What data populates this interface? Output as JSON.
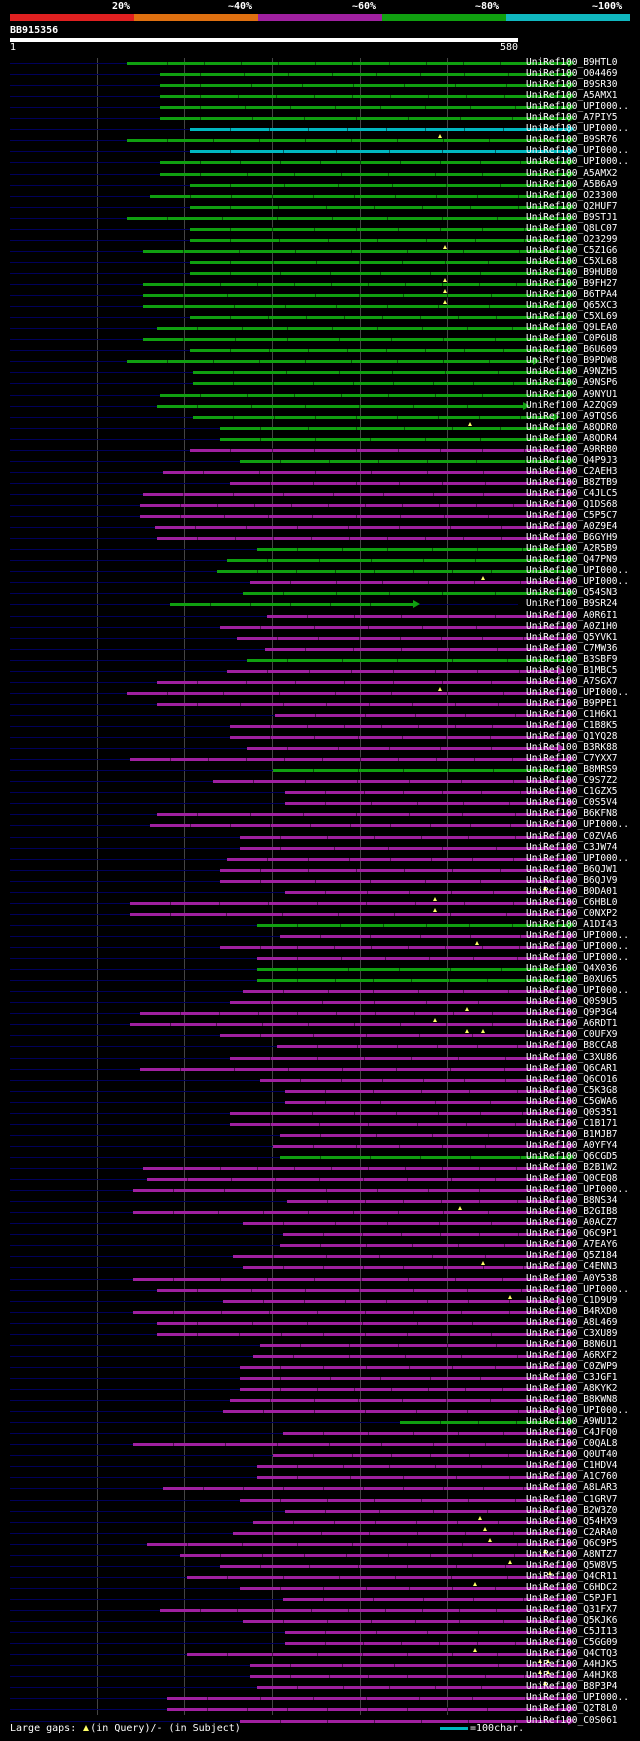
{
  "legend": {
    "labels": [
      "20%",
      "~40%",
      "~60%",
      "~80%",
      "~100%"
    ],
    "colors": [
      "#e02020",
      "#e07010",
      "#a020a0",
      "#10a010",
      "#10b8c0"
    ]
  },
  "query": {
    "name": "BB915356",
    "start": "1",
    "end": "580",
    "length": 580
  },
  "footer": {
    "gaps_label": "Large gaps:",
    "query_text": "(in Query)/",
    "subject_dash": "-",
    "subject_text": " (in Subject)",
    "scale_text": "=100char."
  },
  "hits": [
    [
      "UniRef100_B9HTL0",
      127,
      575,
      "g",
      []
    ],
    [
      "UniRef100_O04469",
      160,
      575,
      "g",
      []
    ],
    [
      "UniRef100_B9SR30",
      160,
      575,
      "g",
      []
    ],
    [
      "UniRef100_A5AMX1",
      160,
      575,
      "g",
      []
    ],
    [
      "UniRef100_UPI000..",
      160,
      575,
      "g",
      []
    ],
    [
      "UniRef100_A7PIY5",
      160,
      575,
      "g",
      []
    ],
    [
      "UniRef100_UPI000..",
      190,
      575,
      "c",
      []
    ],
    [
      "UniRef100_B9SR76",
      127,
      575,
      "g",
      [
        440
      ]
    ],
    [
      "UniRef100_UPI000..",
      190,
      575,
      "c",
      []
    ],
    [
      "UniRef100_UPI000..",
      160,
      575,
      "g",
      []
    ],
    [
      "UniRef100_A5AMX2",
      160,
      575,
      "g",
      []
    ],
    [
      "UniRef100_A5B6A9",
      190,
      575,
      "g",
      []
    ],
    [
      "UniRef100_O23300",
      150,
      575,
      "g",
      []
    ],
    [
      "UniRef100_Q2HUF7",
      190,
      575,
      "g",
      []
    ],
    [
      "UniRef100_B9STJ1",
      127,
      575,
      "g",
      []
    ],
    [
      "UniRef100_Q8LC07",
      190,
      575,
      "g",
      []
    ],
    [
      "UniRef100_O23299",
      190,
      575,
      "g",
      []
    ],
    [
      "UniRef100_C5Z1G6",
      143,
      575,
      "g",
      [
        445
      ]
    ],
    [
      "UniRef100_C5XL68",
      190,
      575,
      "g",
      []
    ],
    [
      "UniRef100_B9HUB0",
      190,
      575,
      "g",
      []
    ],
    [
      "UniRef100_B9FH27",
      143,
      575,
      "g",
      [
        445
      ]
    ],
    [
      "UniRef100_B6TPA4",
      143,
      575,
      "g",
      [
        445
      ]
    ],
    [
      "UniRef100_Q65XC3",
      143,
      575,
      "g",
      [
        445
      ]
    ],
    [
      "UniRef100_C5XL69",
      190,
      575,
      "g",
      []
    ],
    [
      "UniRef100_Q9LEA0",
      157,
      575,
      "g",
      []
    ],
    [
      "UniRef100_C0P6U8",
      143,
      575,
      "g",
      []
    ],
    [
      "UniRef100_B6U609",
      190,
      575,
      "g",
      []
    ],
    [
      "UniRef100_B9PDW8",
      127,
      540,
      "g",
      []
    ],
    [
      "UniRef100_A9NZH5",
      193,
      575,
      "g",
      []
    ],
    [
      "UniRef100_A9NSP6",
      193,
      575,
      "g",
      []
    ],
    [
      "UniRef100_A9NYU1",
      160,
      575,
      "g",
      []
    ],
    [
      "UniRef100_A2ZQG9",
      157,
      530,
      "g",
      []
    ],
    [
      "UniRef100_A9TQS6",
      193,
      560,
      "g",
      []
    ],
    [
      "UniRef100_A8QDR0",
      220,
      575,
      "g",
      [
        470
      ]
    ],
    [
      "UniRef100_A8QDR4",
      220,
      575,
      "g",
      []
    ],
    [
      "UniRef100_A9RRB0",
      190,
      575,
      "m",
      []
    ],
    [
      "UniRef100_Q4P9J3",
      240,
      575,
      "g",
      []
    ],
    [
      "UniRef100_C2AEH3",
      163,
      575,
      "m",
      []
    ],
    [
      "UniRef100_B8ZTB9",
      230,
      575,
      "m",
      []
    ],
    [
      "UniRef100_C4JLC5",
      143,
      575,
      "m",
      []
    ],
    [
      "UniRef100_Q1DS68",
      140,
      575,
      "m",
      []
    ],
    [
      "UniRef100_C5P5C7",
      140,
      575,
      "m",
      []
    ],
    [
      "UniRef100_A0Z9E4",
      155,
      575,
      "m",
      []
    ],
    [
      "UniRef100_B6GYH9",
      157,
      575,
      "m",
      []
    ],
    [
      "UniRef100_A2R5B9",
      257,
      575,
      "g",
      []
    ],
    [
      "UniRef100_Q47PN9",
      227,
      575,
      "g",
      []
    ],
    [
      "UniRef100_UPI000..",
      217,
      575,
      "g",
      []
    ],
    [
      "UniRef100_UPI000..",
      250,
      575,
      "m",
      [
        483
      ]
    ],
    [
      "UniRef100_Q54SN3",
      243,
      575,
      "g",
      []
    ],
    [
      "UniRef100_B9SR24",
      170,
      420,
      "g",
      []
    ],
    [
      "UniRef100_A0R6I1",
      267,
      575,
      "m",
      []
    ],
    [
      "UniRef100_A0Z1H0",
      220,
      575,
      "m",
      []
    ],
    [
      "UniRef100_Q5YVK1",
      237,
      575,
      "m",
      []
    ],
    [
      "UniRef100_C7MW36",
      265,
      575,
      "m",
      []
    ],
    [
      "UniRef100_B3SBF9",
      247,
      575,
      "g",
      []
    ],
    [
      "UniRef100_B1MBC5",
      227,
      565,
      "m",
      []
    ],
    [
      "UniRef100_A7SGX7",
      157,
      575,
      "m",
      []
    ],
    [
      "UniRef100_UPI000..",
      127,
      575,
      "m",
      [
        440
      ]
    ],
    [
      "UniRef100_B9PPE1",
      157,
      575,
      "m",
      []
    ],
    [
      "UniRef100_C1H6K1",
      275,
      575,
      "m",
      []
    ],
    [
      "UniRef100_C1B8K5",
      230,
      575,
      "m",
      []
    ],
    [
      "UniRef100_Q1YQ28",
      230,
      575,
      "m",
      []
    ],
    [
      "UniRef100_B3RK88",
      247,
      565,
      "m",
      []
    ],
    [
      "UniRef100_C7YXX7",
      130,
      575,
      "m",
      []
    ],
    [
      "UniRef100_B8MRS9",
      273,
      575,
      "g",
      []
    ],
    [
      "UniRef100_C9S7Z2",
      213,
      575,
      "m",
      []
    ],
    [
      "UniRef100_C1GZX5",
      285,
      575,
      "m",
      []
    ],
    [
      "UniRef100_C0S5V4",
      285,
      575,
      "m",
      []
    ],
    [
      "UniRef100_B6KFN8",
      157,
      575,
      "m",
      []
    ],
    [
      "UniRef100_UPI000..",
      150,
      575,
      "m",
      []
    ],
    [
      "UniRef100_C0ZVA6",
      240,
      575,
      "m",
      []
    ],
    [
      "UniRef100_C3JW74",
      240,
      575,
      "m",
      []
    ],
    [
      "UniRef100_UPI000..",
      227,
      575,
      "m",
      []
    ],
    [
      "UniRef100_B6QJW1",
      220,
      575,
      "m",
      []
    ],
    [
      "UniRef100_B6QJV9",
      220,
      575,
      "m",
      []
    ],
    [
      "UniRef100_B0DA01",
      285,
      575,
      "m",
      [
        545
      ]
    ],
    [
      "UniRef100_C6HBL0",
      130,
      575,
      "m",
      [
        435
      ]
    ],
    [
      "UniRef100_C0NXP2",
      130,
      575,
      "m",
      [
        435
      ]
    ],
    [
      "UniRef100_A1DI43",
      257,
      575,
      "g",
      []
    ],
    [
      "UniRef100_UPI000..",
      280,
      575,
      "m",
      []
    ],
    [
      "UniRef100_UPI000..",
      220,
      575,
      "m",
      [
        477
      ]
    ],
    [
      "UniRef100_UPI000..",
      257,
      575,
      "m",
      []
    ],
    [
      "UniRef100_Q4X036",
      257,
      575,
      "g",
      []
    ],
    [
      "UniRef100_B0XU65",
      257,
      575,
      "g",
      []
    ],
    [
      "UniRef100_UPI000..",
      243,
      575,
      "m",
      []
    ],
    [
      "UniRef100_Q0S9U5",
      230,
      575,
      "m",
      []
    ],
    [
      "UniRef100_Q9P3G4",
      140,
      575,
      "m",
      [
        467
      ]
    ],
    [
      "UniRef100_A6RDT1",
      130,
      575,
      "m",
      [
        435
      ]
    ],
    [
      "UniRef100_C0UFX9",
      220,
      575,
      "m",
      [
        467,
        483
      ]
    ],
    [
      "UniRef100_B8CCA8",
      277,
      575,
      "m",
      []
    ],
    [
      "UniRef100_C3XU86",
      230,
      575,
      "m",
      []
    ],
    [
      "UniRef100_Q6CAR1",
      140,
      575,
      "m",
      []
    ],
    [
      "UniRef100_Q6CO16",
      260,
      575,
      "m",
      []
    ],
    [
      "UniRef100_C5K3G8",
      285,
      575,
      "m",
      []
    ],
    [
      "UniRef100_C5GWA6",
      285,
      575,
      "m",
      []
    ],
    [
      "UniRef100_Q0S351",
      230,
      575,
      "m",
      []
    ],
    [
      "UniRef100_C1B171",
      230,
      575,
      "m",
      []
    ],
    [
      "UniRef100_B1MJB7",
      280,
      575,
      "m",
      []
    ],
    [
      "UniRef100_A0YFY4",
      273,
      575,
      "m",
      []
    ],
    [
      "UniRef100_Q6CGD5",
      280,
      575,
      "g",
      []
    ],
    [
      "UniRef100_B2B1W2",
      143,
      575,
      "m",
      []
    ],
    [
      "UniRef100_Q0CEQ8",
      147,
      575,
      "m",
      []
    ],
    [
      "UniRef100_UPI000..",
      133,
      575,
      "m",
      []
    ],
    [
      "UniRef100_B8NS34",
      287,
      575,
      "m",
      []
    ],
    [
      "UniRef100_B2GIB8",
      133,
      575,
      "m",
      [
        460
      ]
    ],
    [
      "UniRef100_A0ACZ7",
      243,
      575,
      "m",
      []
    ],
    [
      "UniRef100_Q6C9P1",
      283,
      575,
      "m",
      []
    ],
    [
      "UniRef100_A7EAY6",
      280,
      575,
      "m",
      []
    ],
    [
      "UniRef100_Q5Z184",
      233,
      575,
      "m",
      []
    ],
    [
      "UniRef100_C4ENN3",
      243,
      575,
      "m",
      [
        483
      ]
    ],
    [
      "UniRef100_A0Y538",
      133,
      575,
      "m",
      []
    ],
    [
      "UniRef100_UPI000..",
      157,
      575,
      "m",
      []
    ],
    [
      "UniRef100_C1D9U9",
      223,
      565,
      "m",
      [
        510
      ]
    ],
    [
      "UniRef100_B4RXD0",
      133,
      575,
      "m",
      []
    ],
    [
      "UniRef100_A8L469",
      157,
      575,
      "m",
      []
    ],
    [
      "UniRef100_C3XU89",
      157,
      575,
      "m",
      []
    ],
    [
      "UniRef100_B8N6U1",
      260,
      575,
      "m",
      []
    ],
    [
      "UniRef100_A6RXF2",
      253,
      575,
      "m",
      []
    ],
    [
      "UniRef100_C0ZWP9",
      240,
      575,
      "m",
      []
    ],
    [
      "UniRef100_C3JGF1",
      240,
      575,
      "m",
      []
    ],
    [
      "UniRef100_A8KYK2",
      240,
      575,
      "m",
      []
    ],
    [
      "UniRef100_B8KWN8",
      230,
      575,
      "m",
      []
    ],
    [
      "UniRef100_UPI000..",
      223,
      565,
      "m",
      []
    ],
    [
      "UniRef100_A9WU12",
      400,
      575,
      "g",
      []
    ],
    [
      "UniRef100_C4JFQ0",
      283,
      575,
      "m",
      []
    ],
    [
      "UniRef100_C0QAL8",
      133,
      575,
      "m",
      []
    ],
    [
      "UniRef100_Q0UT40",
      273,
      575,
      "m",
      []
    ],
    [
      "UniRef100_C1HDV4",
      257,
      575,
      "m",
      []
    ],
    [
      "UniRef100_A1C760",
      257,
      575,
      "m",
      []
    ],
    [
      "UniRef100_A8LAR3",
      163,
      575,
      "m",
      []
    ],
    [
      "UniRef100_C1GRV7",
      240,
      575,
      "m",
      []
    ],
    [
      "UniRef100_B2W3Z0",
      285,
      575,
      "m",
      []
    ],
    [
      "UniRef100_Q54HX9",
      253,
      575,
      "m",
      [
        480
      ]
    ],
    [
      "UniRef100_C2ARA0",
      233,
      575,
      "m",
      [
        485
      ]
    ],
    [
      "UniRef100_Q6C9P5",
      147,
      575,
      "m",
      [
        490
      ]
    ],
    [
      "UniRef100_A8NTZ7",
      180,
      575,
      "m",
      [
        545
      ]
    ],
    [
      "UniRef100_Q5W8V5",
      220,
      575,
      "m",
      [
        510
      ]
    ],
    [
      "UniRef100_Q4CR11",
      187,
      575,
      "m",
      [
        550
      ]
    ],
    [
      "UniRef100_C6HDC2",
      240,
      575,
      "m",
      [
        475
      ]
    ],
    [
      "UniRef100_C5PJF1",
      283,
      575,
      "m",
      []
    ],
    [
      "UniRef100_Q31FX7",
      160,
      575,
      "m",
      []
    ],
    [
      "UniRef100_Q5KJK6",
      243,
      575,
      "m",
      []
    ],
    [
      "UniRef100_C5JI13",
      285,
      575,
      "m",
      []
    ],
    [
      "UniRef100_C5GG09",
      285,
      575,
      "m",
      []
    ],
    [
      "UniRef100_Q4CTQ3",
      187,
      575,
      "m",
      [
        475
      ]
    ],
    [
      "UniRef100_A4HJK5",
      250,
      575,
      "m",
      [
        540,
        548
      ]
    ],
    [
      "UniRef100_A4HJK8",
      250,
      575,
      "m",
      [
        540,
        548
      ]
    ],
    [
      "UniRef100_B8P3P4",
      257,
      575,
      "m",
      [
        545
      ]
    ],
    [
      "UniRef100_UPI000..",
      167,
      575,
      "m",
      []
    ],
    [
      "UniRef100_Q2T8L0",
      167,
      575,
      "m",
      []
    ],
    [
      "UniRef100_C0S061",
      240,
      575,
      "m",
      []
    ]
  ]
}
